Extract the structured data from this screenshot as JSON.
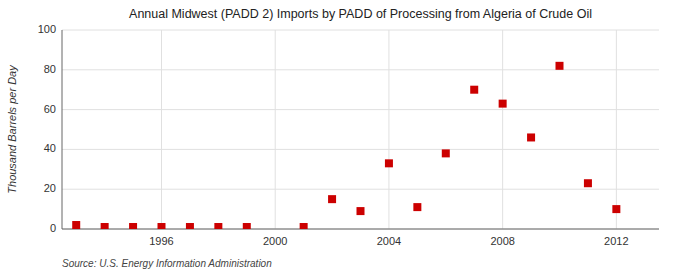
{
  "chart_data": {
    "type": "scatter",
    "title": "Annual Midwest (PADD 2) Imports by PADD of Processing from Algeria of Crude Oil",
    "y_label": "Thousand Barrels per Day",
    "source": "Source: U.S. Energy Information Administration",
    "x": [
      1993,
      1994,
      1995,
      1996,
      1997,
      1998,
      1999,
      2001,
      2002,
      2003,
      2004,
      2005,
      2006,
      2007,
      2008,
      2009,
      2010,
      2011,
      2012
    ],
    "values": [
      2,
      1,
      1,
      1,
      1,
      1,
      1,
      1,
      15,
      9,
      33,
      11,
      38,
      70,
      63,
      46,
      82,
      23,
      10
    ],
    "color": "#cc0000",
    "marker": "square",
    "xlim": [
      1992.5,
      2013.5
    ],
    "xticks": [
      1996,
      2000,
      2004,
      2008,
      2012
    ],
    "ylim": [
      0,
      100
    ],
    "yticks": [
      0,
      20,
      40,
      60,
      80,
      100
    ],
    "grid": true
  }
}
